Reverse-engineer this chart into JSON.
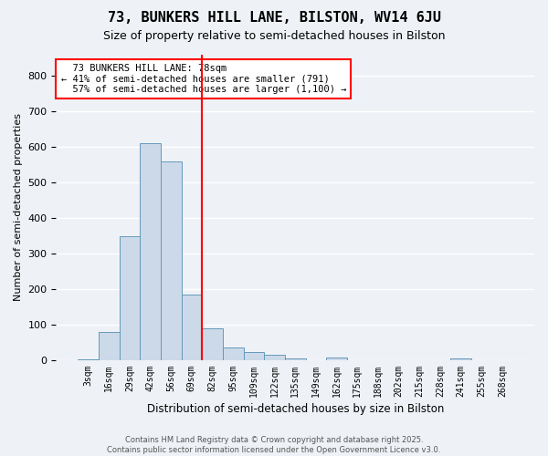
{
  "title": "73, BUNKERS HILL LANE, BILSTON, WV14 6JU",
  "subtitle": "Size of property relative to semi-detached houses in Bilston",
  "xlabel": "Distribution of semi-detached houses by size in Bilston",
  "ylabel": "Number of semi-detached properties",
  "bar_color": "#ccd9e8",
  "bar_edge_color": "#6699bb",
  "line_color": "red",
  "property_label": "73 BUNKERS HILL LANE: 78sqm",
  "pct_smaller": 41,
  "pct_smaller_count": 791,
  "pct_larger": 57,
  "pct_larger_count": 1100,
  "categories": [
    "3sqm",
    "16sqm",
    "29sqm",
    "42sqm",
    "56sqm",
    "69sqm",
    "82sqm",
    "95sqm",
    "109sqm",
    "122sqm",
    "135sqm",
    "149sqm",
    "162sqm",
    "175sqm",
    "188sqm",
    "202sqm",
    "215sqm",
    "228sqm",
    "241sqm",
    "255sqm",
    "268sqm"
  ],
  "values": [
    2,
    80,
    350,
    610,
    560,
    185,
    90,
    35,
    22,
    15,
    5,
    0,
    8,
    0,
    0,
    0,
    0,
    0,
    5,
    0,
    0
  ],
  "ylim": [
    0,
    860
  ],
  "yticks": [
    0,
    100,
    200,
    300,
    400,
    500,
    600,
    700,
    800
  ],
  "background_color": "#eef2f7",
  "grid_color": "#ffffff",
  "footer": "Contains HM Land Registry data © Crown copyright and database right 2025.\nContains public sector information licensed under the Open Government Licence v3.0."
}
